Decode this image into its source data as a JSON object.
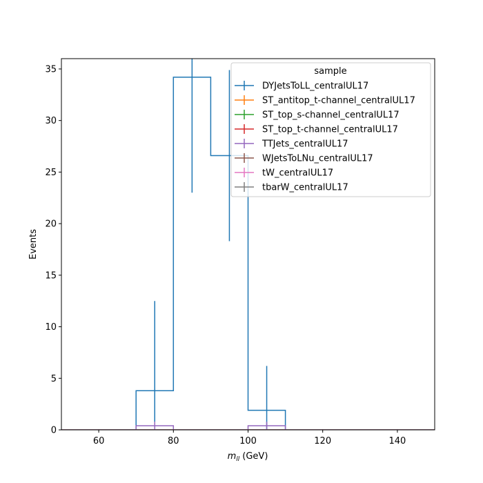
{
  "chart_data": {
    "type": "histogram",
    "xlabel_main": "m",
    "xlabel_sub": "ll",
    "xlabel_unit": "(GeV)",
    "ylabel": "Events",
    "xlim": [
      50,
      150
    ],
    "ylim": [
      0,
      36
    ],
    "xticks": [
      60,
      80,
      100,
      120,
      140
    ],
    "yticks": [
      0,
      5,
      10,
      15,
      20,
      25,
      30,
      35
    ],
    "grid": false,
    "legend": {
      "title": "sample",
      "placement": "top-right"
    },
    "bin_edges": [
      70,
      80,
      90,
      100,
      110
    ],
    "series": [
      {
        "name": "DYJetsToLL_centralUL17",
        "color": "#1f77b4",
        "values": [
          3.8,
          34.2,
          26.6,
          1.9
        ],
        "errors": [
          8.7,
          11.2,
          8.3,
          4.3
        ]
      },
      {
        "name": "ST_antitop_t-channel_centralUL17",
        "color": "#ff7f0e",
        "values": [
          0,
          0,
          0,
          0
        ],
        "errors": [
          0,
          0,
          0,
          0
        ]
      },
      {
        "name": "ST_top_s-channel_centralUL17",
        "color": "#2ca02c",
        "values": [
          0,
          0,
          0,
          0
        ],
        "errors": [
          0,
          0,
          0,
          0
        ]
      },
      {
        "name": "ST_top_t-channel_centralUL17",
        "color": "#d62728",
        "values": [
          0,
          0,
          0,
          0
        ],
        "errors": [
          0,
          0,
          0,
          0
        ]
      },
      {
        "name": "TTJets_centralUL17",
        "color": "#9467bd",
        "values": [
          0.4,
          0,
          0,
          0.4
        ],
        "errors": [
          0.4,
          0,
          0,
          0.4
        ]
      },
      {
        "name": "WJetsToLNu_centralUL17",
        "color": "#8c564b",
        "values": [
          0,
          0,
          0,
          0
        ],
        "errors": [
          0,
          0,
          0,
          0
        ]
      },
      {
        "name": "tW_centralUL17",
        "color": "#e377c2",
        "values": [
          0,
          0,
          0,
          0
        ],
        "errors": [
          0,
          0,
          0,
          0
        ]
      },
      {
        "name": "tbarW_centralUL17",
        "color": "#7f7f7f",
        "values": [
          0,
          0,
          0,
          0
        ],
        "errors": [
          0,
          0,
          0,
          0
        ]
      }
    ]
  }
}
